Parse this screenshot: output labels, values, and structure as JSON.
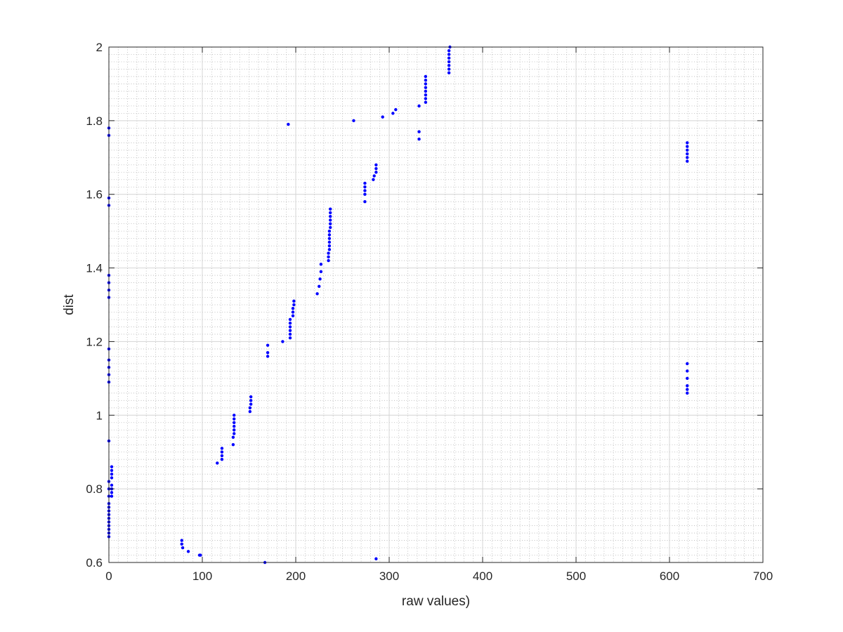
{
  "chart_data": {
    "type": "scatter",
    "xlabel": "raw values)",
    "ylabel": "dist",
    "xlim": [
      0,
      700
    ],
    "ylim": [
      0.6,
      2
    ],
    "xticks": [
      0,
      100,
      200,
      300,
      400,
      500,
      600,
      700
    ],
    "yticks": [
      0.6,
      0.8,
      1,
      1.2,
      1.4,
      1.6,
      1.8,
      2
    ],
    "xtick_labels": [
      "0",
      "100",
      "200",
      "300",
      "400",
      "500",
      "600",
      "700"
    ],
    "ytick_labels": [
      "0.6",
      "0.8",
      "1",
      "1.2",
      "1.4",
      "1.6",
      "1.8",
      "2"
    ],
    "grid": "major and minor",
    "series": [
      {
        "color": "#0000ff",
        "points": [
          [
            0,
            1.78
          ],
          [
            0,
            1.76
          ],
          [
            0,
            1.59
          ],
          [
            0,
            1.57
          ],
          [
            0,
            1.38
          ],
          [
            0,
            1.36
          ],
          [
            0,
            1.34
          ],
          [
            0,
            1.32
          ],
          [
            0,
            1.18
          ],
          [
            0,
            1.15
          ],
          [
            0,
            1.13
          ],
          [
            0,
            1.11
          ],
          [
            0,
            1.09
          ],
          [
            0,
            0.93
          ],
          [
            0,
            0.82
          ],
          [
            0,
            0.8
          ],
          [
            0,
            0.78
          ],
          [
            0,
            0.76
          ],
          [
            0,
            0.75
          ],
          [
            0,
            0.74
          ],
          [
            0,
            0.73
          ],
          [
            0,
            0.72
          ],
          [
            0,
            0.71
          ],
          [
            0,
            0.7
          ],
          [
            0,
            0.69
          ],
          [
            0,
            0.68
          ],
          [
            0,
            0.67
          ],
          [
            3,
            0.86
          ],
          [
            3,
            0.85
          ],
          [
            3,
            0.84
          ],
          [
            3,
            0.83
          ],
          [
            3,
            0.81
          ],
          [
            3,
            0.8
          ],
          [
            3,
            0.79
          ],
          [
            3,
            0.78
          ],
          [
            78,
            0.66
          ],
          [
            78,
            0.65
          ],
          [
            79,
            0.64
          ],
          [
            85,
            0.63
          ],
          [
            97,
            0.62
          ],
          [
            98,
            0.62
          ],
          [
            167,
            0.6
          ],
          [
            116,
            0.87
          ],
          [
            121,
            0.91
          ],
          [
            121,
            0.9
          ],
          [
            121,
            0.89
          ],
          [
            121,
            0.88
          ],
          [
            133,
            0.92
          ],
          [
            133,
            0.94
          ],
          [
            134,
            0.95
          ],
          [
            134,
            0.96
          ],
          [
            134,
            0.97
          ],
          [
            134,
            0.98
          ],
          [
            134,
            0.99
          ],
          [
            134,
            1.0
          ],
          [
            151,
            1.01
          ],
          [
            151,
            1.02
          ],
          [
            152,
            1.03
          ],
          [
            152,
            1.04
          ],
          [
            152,
            1.05
          ],
          [
            170,
            1.16
          ],
          [
            170,
            1.17
          ],
          [
            170,
            1.19
          ],
          [
            186,
            1.2
          ],
          [
            194,
            1.21
          ],
          [
            194,
            1.22
          ],
          [
            194,
            1.23
          ],
          [
            194,
            1.24
          ],
          [
            194,
            1.25
          ],
          [
            194,
            1.26
          ],
          [
            197,
            1.27
          ],
          [
            197,
            1.28
          ],
          [
            197,
            1.29
          ],
          [
            198,
            1.3
          ],
          [
            198,
            1.31
          ],
          [
            223,
            1.33
          ],
          [
            225,
            1.35
          ],
          [
            226,
            1.37
          ],
          [
            227,
            1.39
          ],
          [
            227,
            1.41
          ],
          [
            235,
            1.42
          ],
          [
            235,
            1.43
          ],
          [
            235,
            1.44
          ],
          [
            236,
            1.45
          ],
          [
            236,
            1.46
          ],
          [
            236,
            1.47
          ],
          [
            236,
            1.48
          ],
          [
            236,
            1.49
          ],
          [
            236,
            1.5
          ],
          [
            237,
            1.51
          ],
          [
            237,
            1.52
          ],
          [
            237,
            1.53
          ],
          [
            237,
            1.54
          ],
          [
            237,
            1.55
          ],
          [
            237,
            1.56
          ],
          [
            192,
            1.79
          ],
          [
            262,
            1.8
          ],
          [
            274,
            1.58
          ],
          [
            274,
            1.6
          ],
          [
            274,
            1.61
          ],
          [
            274,
            1.62
          ],
          [
            274,
            1.63
          ],
          [
            283,
            1.64
          ],
          [
            284,
            1.65
          ],
          [
            286,
            1.66
          ],
          [
            286,
            1.67
          ],
          [
            286,
            1.68
          ],
          [
            286,
            0.61
          ],
          [
            293,
            1.81
          ],
          [
            304,
            1.82
          ],
          [
            307,
            1.83
          ],
          [
            332,
            1.75
          ],
          [
            332,
            1.77
          ],
          [
            332,
            1.84
          ],
          [
            339,
            1.85
          ],
          [
            339,
            1.86
          ],
          [
            339,
            1.87
          ],
          [
            339,
            1.88
          ],
          [
            339,
            1.89
          ],
          [
            339,
            1.9
          ],
          [
            339,
            1.91
          ],
          [
            339,
            1.92
          ],
          [
            364,
            1.93
          ],
          [
            364,
            1.94
          ],
          [
            364,
            1.95
          ],
          [
            364,
            1.96
          ],
          [
            364,
            1.97
          ],
          [
            364,
            1.98
          ],
          [
            364,
            1.99
          ],
          [
            365,
            2.0
          ],
          [
            619,
            1.69
          ],
          [
            619,
            1.7
          ],
          [
            619,
            1.71
          ],
          [
            619,
            1.72
          ],
          [
            619,
            1.73
          ],
          [
            619,
            1.74
          ],
          [
            619,
            1.06
          ],
          [
            619,
            1.07
          ],
          [
            619,
            1.08
          ],
          [
            619,
            1.1
          ],
          [
            619,
            1.12
          ],
          [
            619,
            1.14
          ]
        ]
      }
    ]
  }
}
